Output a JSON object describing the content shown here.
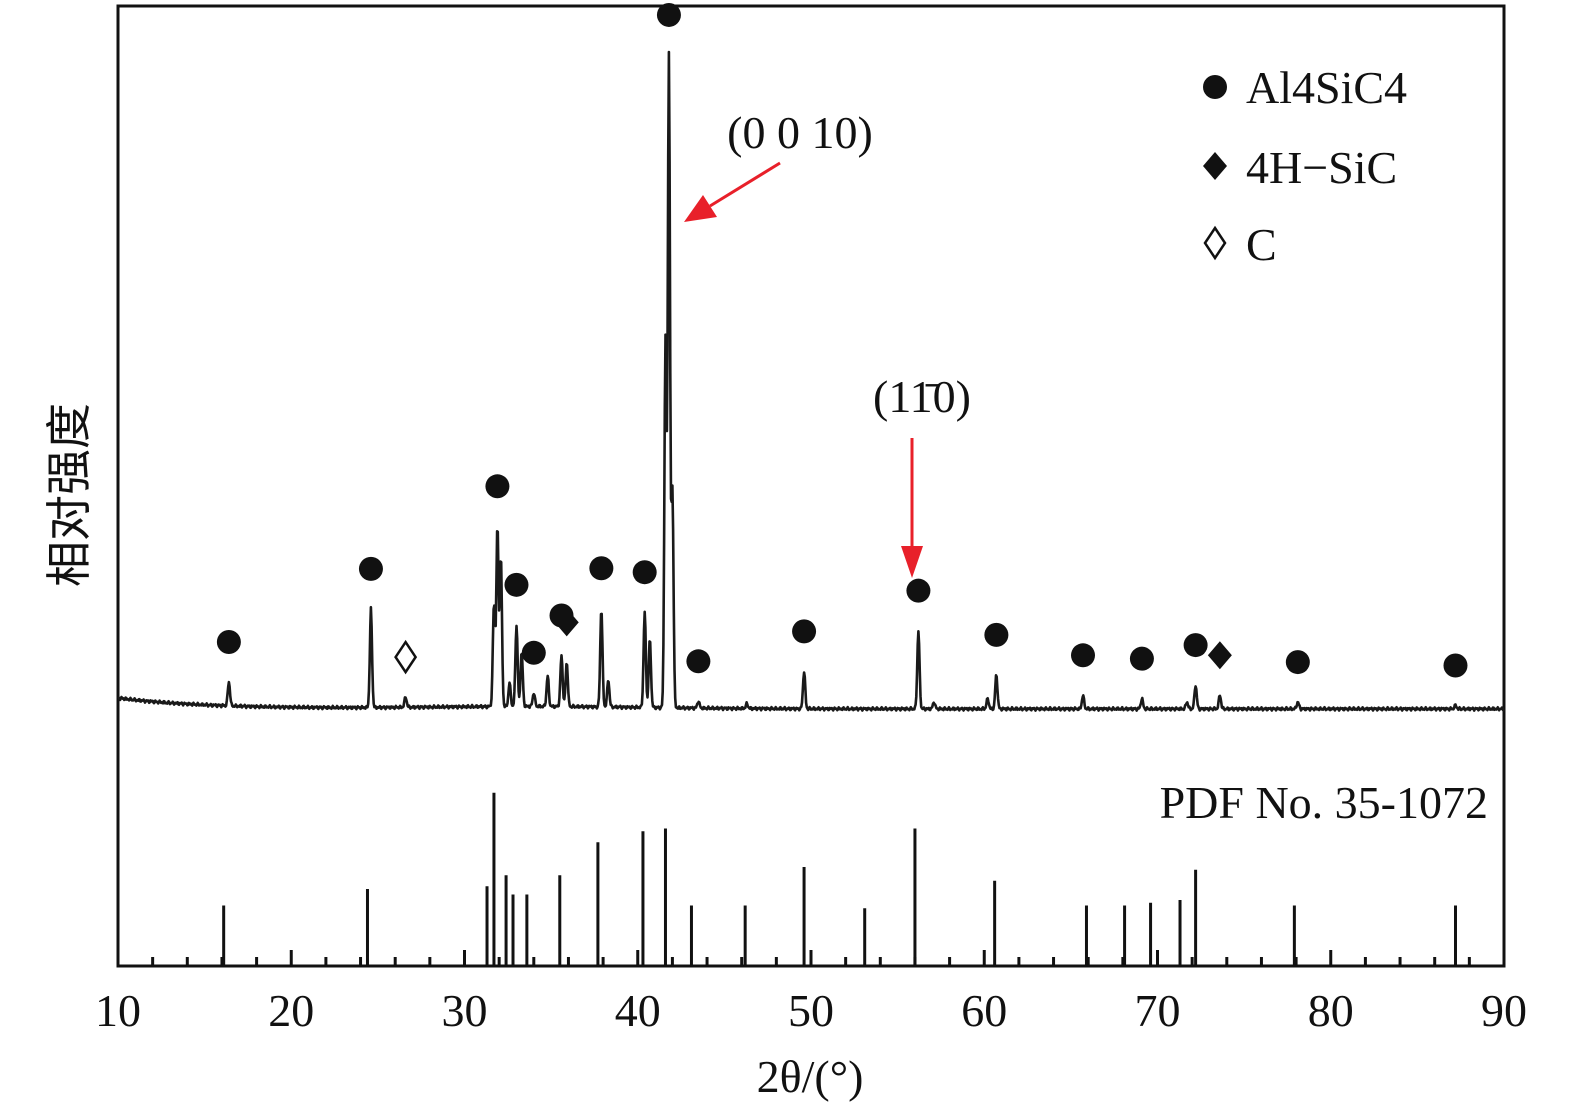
{
  "chart_data": {
    "type": "line",
    "xlabel": "2θ/(°)",
    "ylabel": "相对强度",
    "xlim": [
      10,
      90
    ],
    "x_ticks": [
      "10",
      "20",
      "30",
      "40",
      "50",
      "60",
      "70",
      "80",
      "90"
    ],
    "y_ticks": [],
    "legend": {
      "position": "top-right",
      "entries": [
        {
          "marker": "filled-circle",
          "label": "Al4SiC4"
        },
        {
          "marker": "filled-diamond",
          "label": "4H−SiC"
        },
        {
          "marker": "open-diamond",
          "label": "C"
        }
      ]
    },
    "annotations": [
      {
        "text": "(0 0 10)",
        "points_to_x": 41.8
      },
      {
        "text": "(11̄0)",
        "points_to_x": 56.2
      }
    ],
    "series": [
      {
        "role": "measured pattern",
        "peaks": [
          {
            "x": 16.4,
            "y": 3.5,
            "phase": "Al4SiC4"
          },
          {
            "x": 24.6,
            "y": 14.5,
            "phase": "Al4SiC4"
          },
          {
            "x": 26.6,
            "y": 1.5,
            "phase": "C"
          },
          {
            "x": 31.7,
            "y": 15,
            "phase": null
          },
          {
            "x": 31.9,
            "y": 26.5,
            "phase": "Al4SiC4"
          },
          {
            "x": 32.1,
            "y": 22,
            "phase": null
          },
          {
            "x": 32.6,
            "y": 3.5,
            "phase": null
          },
          {
            "x": 33.0,
            "y": 12,
            "phase": "Al4SiC4"
          },
          {
            "x": 33.3,
            "y": 8,
            "phase": null
          },
          {
            "x": 34.0,
            "y": 2,
            "phase": "Al4SiC4"
          },
          {
            "x": 34.8,
            "y": 4.5,
            "phase": null
          },
          {
            "x": 35.6,
            "y": 7.5,
            "phase": "Al4SiC4"
          },
          {
            "x": 35.9,
            "y": 6.5,
            "phase": "4H−SiC"
          },
          {
            "x": 37.9,
            "y": 14.5,
            "phase": "Al4SiC4"
          },
          {
            "x": 38.3,
            "y": 4,
            "phase": null
          },
          {
            "x": 40.4,
            "y": 14,
            "phase": "Al4SiC4"
          },
          {
            "x": 40.7,
            "y": 10,
            "phase": null
          },
          {
            "x": 41.6,
            "y": 54,
            "phase": null
          },
          {
            "x": 41.8,
            "y": 96,
            "phase": "Al4SiC4"
          },
          {
            "x": 42.0,
            "y": 32,
            "phase": null
          },
          {
            "x": 43.5,
            "y": 1,
            "phase": "Al4SiC4"
          },
          {
            "x": 46.3,
            "y": 0.7,
            "phase": null
          },
          {
            "x": 49.6,
            "y": 5.5,
            "phase": "Al4SiC4"
          },
          {
            "x": 56.2,
            "y": 11.5,
            "phase": "Al4SiC4"
          },
          {
            "x": 57.1,
            "y": 1,
            "phase": null
          },
          {
            "x": 60.2,
            "y": 1.5,
            "phase": null
          },
          {
            "x": 60.7,
            "y": 5,
            "phase": "Al4SiC4"
          },
          {
            "x": 65.7,
            "y": 2,
            "phase": "Al4SiC4"
          },
          {
            "x": 69.1,
            "y": 1.5,
            "phase": "Al4SiC4"
          },
          {
            "x": 71.7,
            "y": 1,
            "phase": null
          },
          {
            "x": 72.2,
            "y": 3.5,
            "phase": "Al4SiC4"
          },
          {
            "x": 73.6,
            "y": 2,
            "phase": "4H−SiC"
          },
          {
            "x": 78.1,
            "y": 1,
            "phase": "Al4SiC4"
          },
          {
            "x": 87.2,
            "y": 0.5,
            "phase": "Al4SiC4"
          }
        ]
      },
      {
        "name": "PDF No. 35-1072",
        "type": "stick",
        "sticks": [
          {
            "x": 16.1,
            "y": 22
          },
          {
            "x": 24.4,
            "y": 28
          },
          {
            "x": 31.3,
            "y": 29
          },
          {
            "x": 31.7,
            "y": 63
          },
          {
            "x": 32.4,
            "y": 33
          },
          {
            "x": 32.8,
            "y": 26
          },
          {
            "x": 33.6,
            "y": 26
          },
          {
            "x": 35.5,
            "y": 33
          },
          {
            "x": 37.7,
            "y": 45
          },
          {
            "x": 40.3,
            "y": 49
          },
          {
            "x": 41.6,
            "y": 50
          },
          {
            "x": 43.1,
            "y": 22
          },
          {
            "x": 46.2,
            "y": 22
          },
          {
            "x": 49.6,
            "y": 36
          },
          {
            "x": 53.1,
            "y": 21
          },
          {
            "x": 56.0,
            "y": 50
          },
          {
            "x": 60.6,
            "y": 31
          },
          {
            "x": 65.9,
            "y": 22
          },
          {
            "x": 68.1,
            "y": 22
          },
          {
            "x": 69.6,
            "y": 23
          },
          {
            "x": 71.3,
            "y": 24
          },
          {
            "x": 72.2,
            "y": 35
          },
          {
            "x": 77.9,
            "y": 22
          },
          {
            "x": 87.2,
            "y": 22
          }
        ]
      }
    ]
  }
}
